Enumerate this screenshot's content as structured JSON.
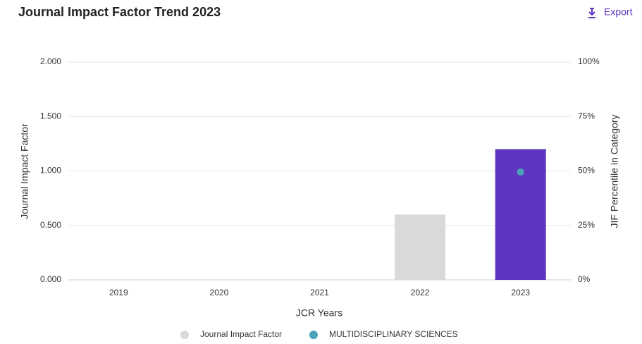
{
  "header": {
    "title": "Journal Impact Factor Trend 2023",
    "export": "Export"
  },
  "chart_data": {
    "type": "bar",
    "x_label": "JCR Years",
    "y_label": "Journal Impact Factor",
    "y2_label": "JIF Percentile in Category",
    "categories": [
      "2019",
      "2020",
      "2021",
      "2022",
      "2023"
    ],
    "series": [
      {
        "name": "Journal Impact Factor",
        "type": "bar",
        "color": "#d9d9d9",
        "point_colors": [
          null,
          null,
          null,
          "#d9d9d9",
          "#5e35c0"
        ],
        "values": [
          null,
          null,
          null,
          0.6,
          1.2
        ]
      },
      {
        "name": "MULTIDISCIPLINARY SCIENCES",
        "type": "scatter",
        "axis": "y2",
        "color": "#4aa3b8",
        "values": [
          null,
          null,
          null,
          null,
          49.5
        ]
      }
    ],
    "ylim": [
      0,
      2
    ],
    "yticks": [
      {
        "value": 0,
        "label": "0.000"
      },
      {
        "value": 0.5,
        "label": "0.500"
      },
      {
        "value": 1,
        "label": "1.000"
      },
      {
        "value": 1.5,
        "label": "1.500"
      },
      {
        "value": 2,
        "label": "2.000"
      }
    ],
    "y2lim": [
      0,
      100
    ],
    "y2ticks": [
      {
        "value": 0,
        "label": "0%"
      },
      {
        "value": 25,
        "label": "25%"
      },
      {
        "value": 50,
        "label": "50%"
      },
      {
        "value": 75,
        "label": "75%"
      },
      {
        "value": 100,
        "label": "100%"
      }
    ],
    "grid": true,
    "legend": "bottom"
  }
}
